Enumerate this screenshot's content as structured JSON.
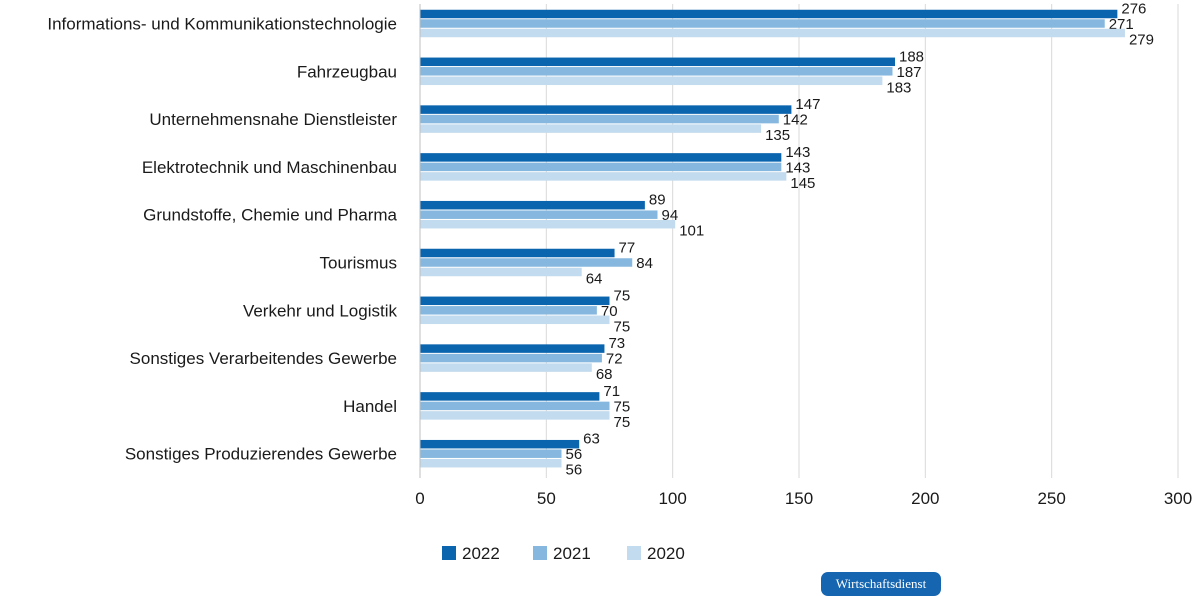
{
  "chart_data": {
    "type": "bar",
    "orientation": "horizontal",
    "categories": [
      "Informations- und Kommunikationstechnologie",
      "Fahrzeugbau",
      "Unternehmensnahe Dienstleister",
      "Elektrotechnik und Maschinenbau",
      "Grundstoffe, Chemie und Pharma",
      "Tourismus",
      "Verkehr und Logistik",
      "Sonstiges Verarbeitendes Gewerbe",
      "Handel",
      "Sonstiges Produzierendes Gewerbe"
    ],
    "series": [
      {
        "name": "2022",
        "color": "#0b64ae",
        "values": [
          276,
          188,
          147,
          143,
          89,
          77,
          75,
          73,
          71,
          63
        ]
      },
      {
        "name": "2021",
        "color": "#86b8df",
        "values": [
          271,
          187,
          142,
          143,
          94,
          84,
          70,
          72,
          75,
          56
        ]
      },
      {
        "name": "2020",
        "color": "#c3dbee",
        "values": [
          279,
          183,
          135,
          145,
          101,
          64,
          75,
          68,
          75,
          56
        ]
      }
    ],
    "xlim": [
      0,
      300
    ],
    "xticks": [
      0,
      50,
      100,
      150,
      200,
      250,
      300
    ],
    "grid": "vertical",
    "legend_position": "bottom",
    "title": "",
    "xlabel": "",
    "ylabel": ""
  },
  "badge": {
    "text": "Wirtschaftsdienst"
  }
}
